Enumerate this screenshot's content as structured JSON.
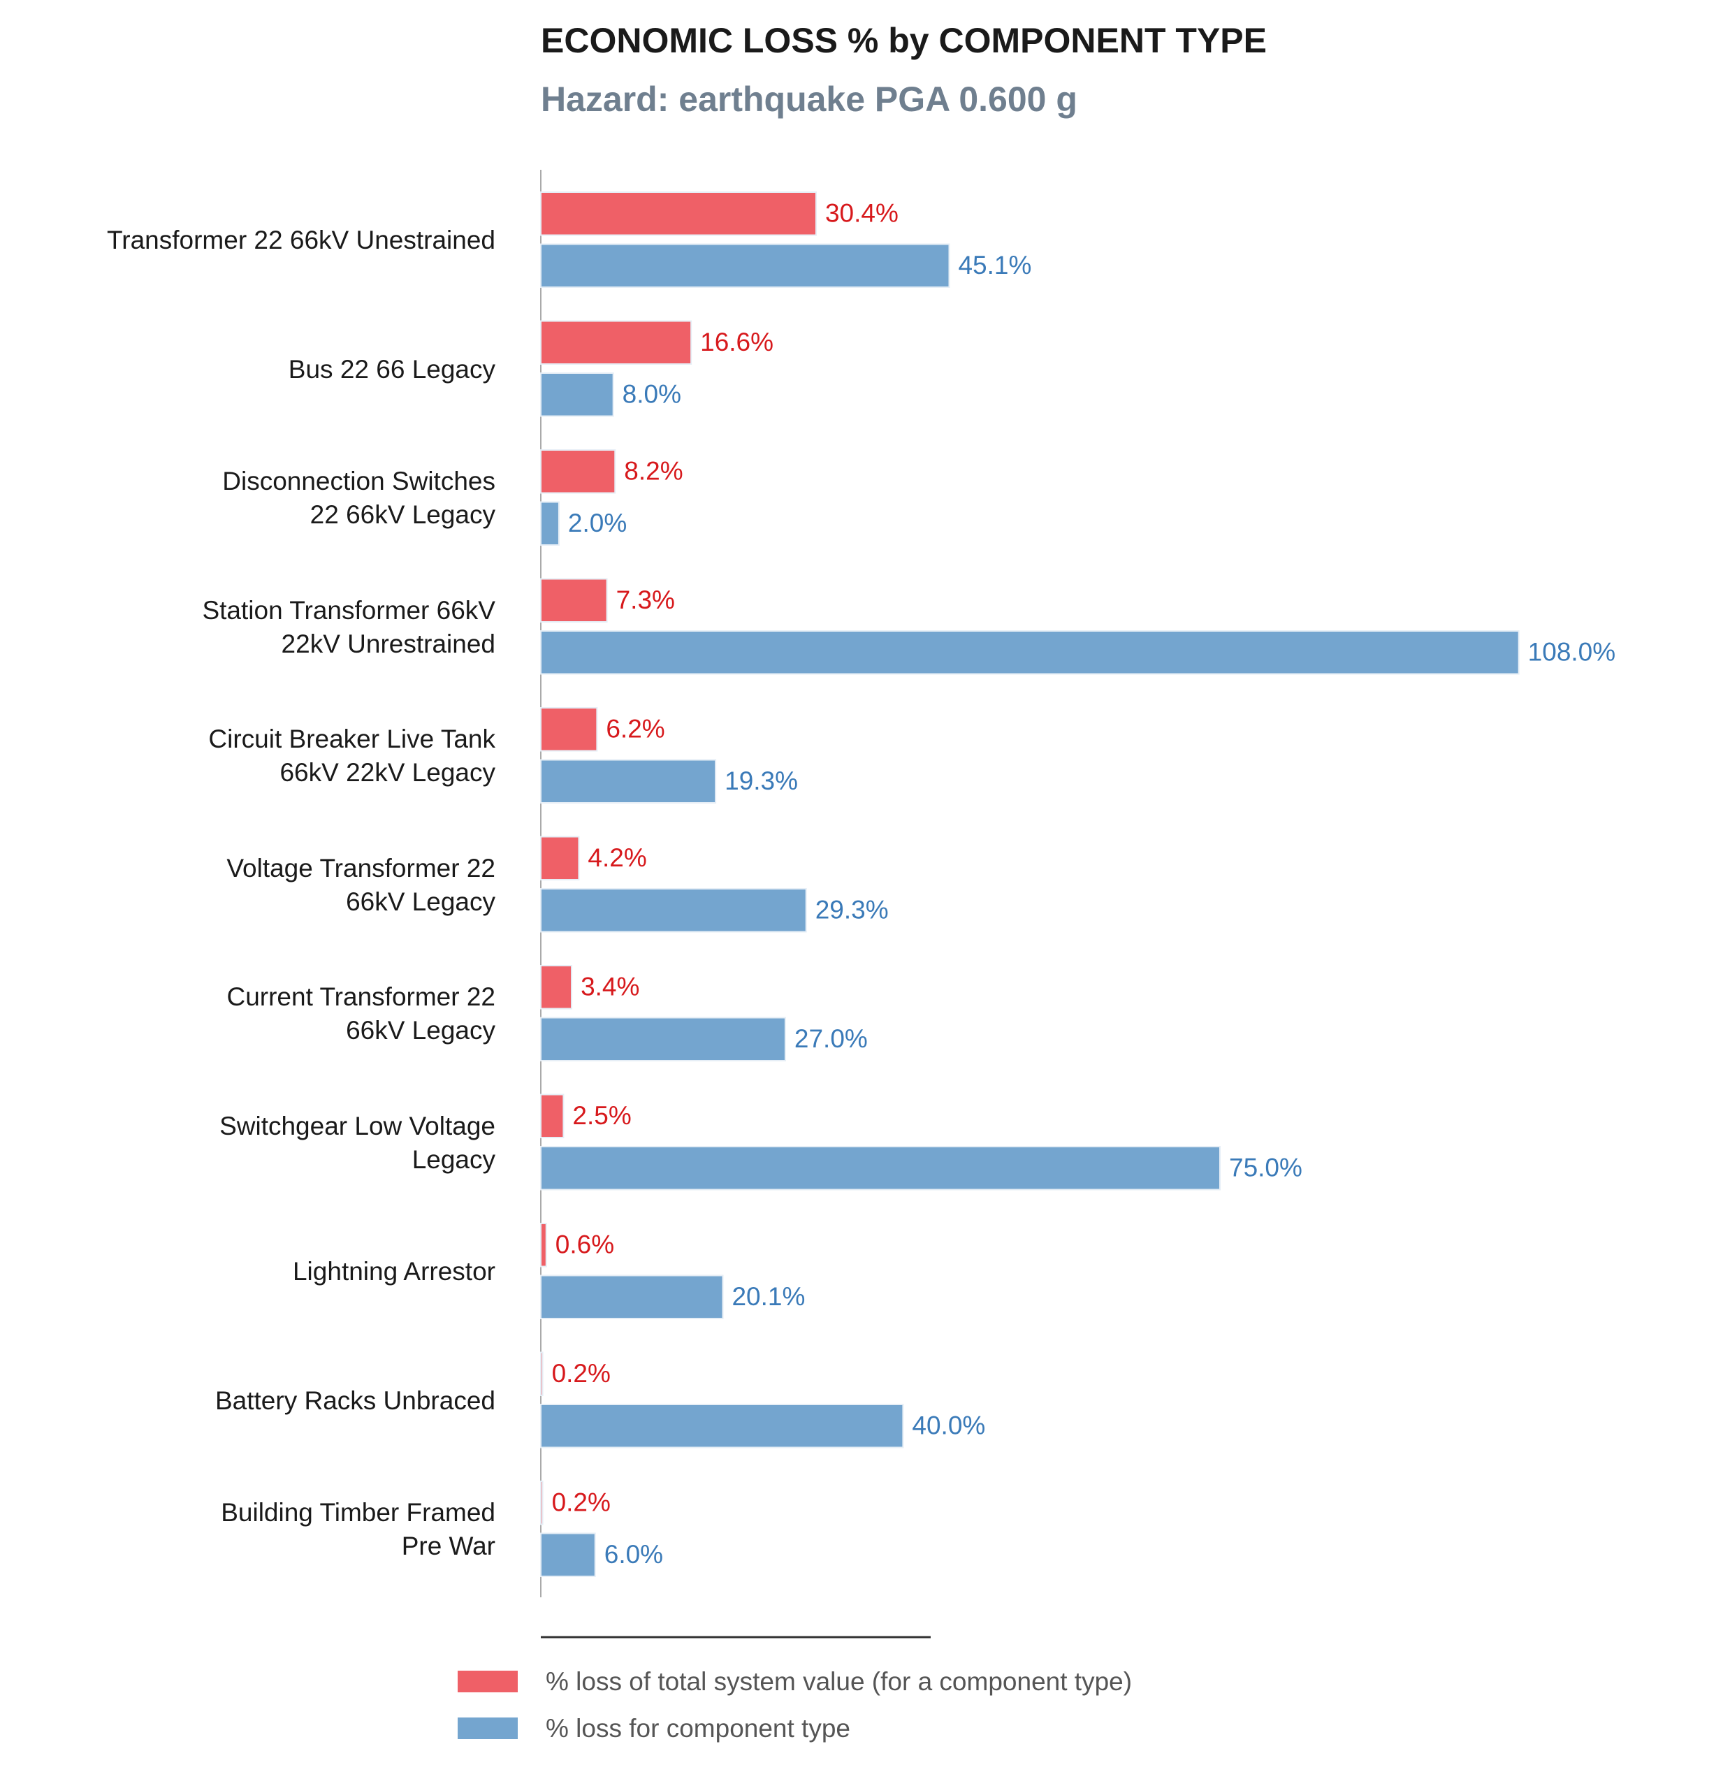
{
  "chart_data": {
    "type": "grouped-bar-horizontal",
    "title": "ECONOMIC LOSS % by COMPONENT TYPE",
    "subtitle": "Hazard: earthquake PGA 0.600 g",
    "categories": [
      "Transformer 22 66kV Unestrained",
      "Bus 22 66 Legacy",
      "Disconnection Switches\n22 66kV Legacy",
      "Station Transformer 66kV\n22kV Unrestrained",
      "Circuit Breaker Live Tank\n66kV 22kV Legacy",
      "Voltage Transformer 22\n66kV Legacy",
      "Current Transformer 22\n66kV Legacy",
      "Switchgear Low Voltage\nLegacy",
      "Lightning Arrestor",
      "Battery Racks Unbraced",
      "Building Timber Framed\nPre War"
    ],
    "series": [
      {
        "name": "% loss of total system value (for a component type)",
        "color": "#ef6067",
        "label_color": "#d7191c",
        "values": [
          30.4,
          16.6,
          8.2,
          7.3,
          6.2,
          4.2,
          3.4,
          2.5,
          0.6,
          0.2,
          0.2
        ],
        "value_labels": [
          "30.4%",
          "16.6%",
          "8.2%",
          "7.3%",
          "6.2%",
          "4.2%",
          "3.4%",
          "2.5%",
          "0.6%",
          "0.2%",
          "0.2%"
        ]
      },
      {
        "name": "% loss for component type",
        "color": "#74a5cf",
        "label_color": "#3a7ab8",
        "values": [
          45.1,
          8.0,
          2.0,
          108.0,
          19.3,
          29.3,
          27.0,
          75.0,
          20.1,
          40.0,
          6.0
        ],
        "value_labels": [
          "45.1%",
          "8.0%",
          "2.0%",
          "108.0%",
          "19.3%",
          "29.3%",
          "27.0%",
          "75.0%",
          "20.1%",
          "40.0%",
          "6.0%"
        ]
      }
    ]
  }
}
